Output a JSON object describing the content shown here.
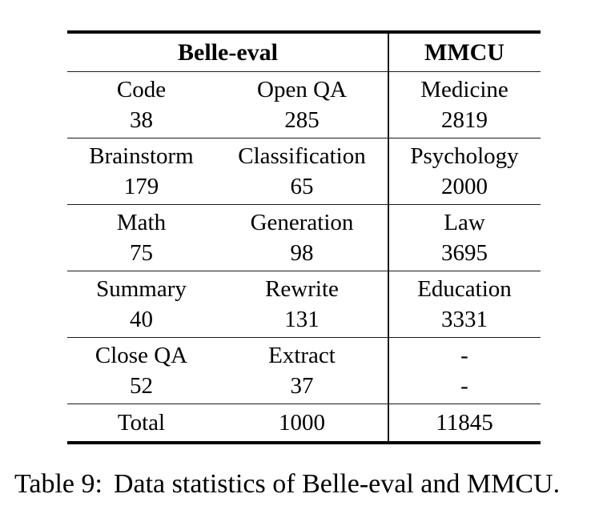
{
  "table": {
    "header": {
      "group1": "Belle-eval",
      "group2": "MMCU"
    },
    "rows": [
      {
        "c1": {
          "label": "Code",
          "value": "38"
        },
        "c2": {
          "label": "Open QA",
          "value": "285"
        },
        "c3": {
          "label": "Medicine",
          "value": "2819"
        }
      },
      {
        "c1": {
          "label": "Brainstorm",
          "value": "179"
        },
        "c2": {
          "label": "Classification",
          "value": "65"
        },
        "c3": {
          "label": "Psychology",
          "value": "2000"
        }
      },
      {
        "c1": {
          "label": "Math",
          "value": "75"
        },
        "c2": {
          "label": "Generation",
          "value": "98"
        },
        "c3": {
          "label": "Law",
          "value": "3695"
        }
      },
      {
        "c1": {
          "label": "Summary",
          "value": "40"
        },
        "c2": {
          "label": "Rewrite",
          "value": "131"
        },
        "c3": {
          "label": "Education",
          "value": "3331"
        }
      },
      {
        "c1": {
          "label": "Close QA",
          "value": "52"
        },
        "c2": {
          "label": "Extract",
          "value": "37"
        },
        "c3": {
          "label": "-",
          "value": "-"
        }
      }
    ],
    "total": {
      "label": "Total",
      "belle_total": "1000",
      "mmcu_total": "11845"
    }
  },
  "caption": {
    "tag": "Table 9:",
    "text": "Data statistics of Belle-eval and MMCU."
  },
  "colors": {
    "text": "#000000",
    "background": "#ffffff",
    "rule": "#000000"
  }
}
